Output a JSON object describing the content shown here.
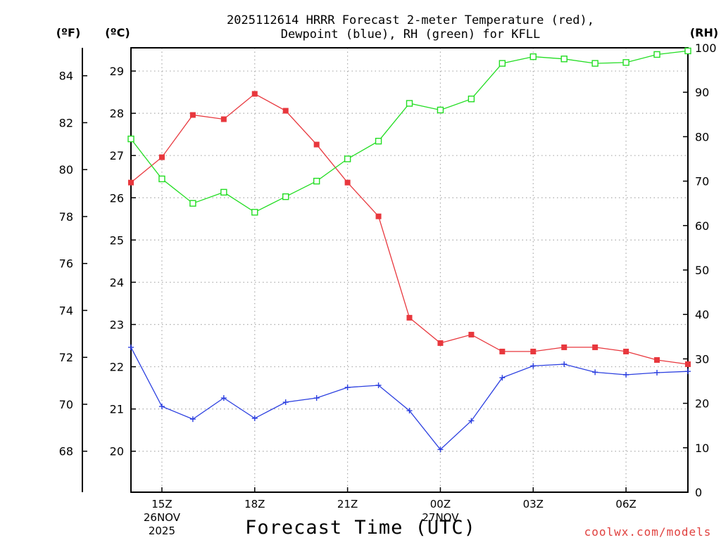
{
  "chart_data": {
    "type": "line",
    "title_line1": "2025112614 HRRR Forecast 2-meter Temperature (red),",
    "title_line2": "Dewpoint (blue), RH (green) for KFLL",
    "left_outer_unit": "(ºF)",
    "left_inner_unit": "(ºC)",
    "right_unit": "(RH)",
    "xlabel": "Forecast Time (UTC)",
    "credit": "coolwx.com/models",
    "hours": [
      14,
      15,
      16,
      17,
      18,
      19,
      20,
      21,
      22,
      23,
      24,
      25,
      26,
      27,
      28,
      29,
      30,
      31,
      32
    ],
    "xlim": [
      14,
      32
    ],
    "x_ticks": [
      {
        "hour": 15,
        "label": "15Z",
        "sub1": "26NOV",
        "sub2": "2025"
      },
      {
        "hour": 18,
        "label": "18Z",
        "sub1": "",
        "sub2": ""
      },
      {
        "hour": 21,
        "label": "21Z",
        "sub1": "",
        "sub2": ""
      },
      {
        "hour": 24,
        "label": "00Z",
        "sub1": "27NOV",
        "sub2": ""
      },
      {
        "hour": 27,
        "label": "03Z",
        "sub1": "",
        "sub2": ""
      },
      {
        "hour": 30,
        "label": "06Z",
        "sub1": "",
        "sub2": ""
      }
    ],
    "celsius_axis": {
      "ylim": [
        19.03,
        29.55
      ],
      "ticks": [
        20,
        21,
        22,
        23,
        24,
        25,
        26,
        27,
        28,
        29
      ]
    },
    "fahrenheit_axis": {
      "ticks": [
        68,
        70,
        72,
        74,
        76,
        78,
        80,
        82,
        84
      ]
    },
    "rh_axis": {
      "ylim": [
        0,
        100
      ],
      "ticks": [
        0,
        10,
        20,
        30,
        40,
        50,
        60,
        70,
        80,
        90,
        100
      ]
    },
    "series": [
      {
        "name": "Temperature",
        "color": "#e8373d",
        "marker": "filled-square",
        "units": "C",
        "values": [
          26.36,
          26.96,
          27.96,
          27.86,
          28.46,
          28.06,
          27.26,
          26.36,
          25.56,
          23.16,
          22.56,
          22.76,
          22.36,
          22.36,
          22.46,
          22.46,
          22.36,
          22.16,
          22.06
        ]
      },
      {
        "name": "Dewpoint",
        "color": "#2b3fe0",
        "marker": "plus",
        "units": "C",
        "values": [
          22.46,
          21.06,
          20.76,
          21.26,
          20.78,
          21.16,
          21.26,
          21.51,
          21.56,
          20.96,
          20.04,
          20.72,
          21.74,
          22.02,
          22.06,
          21.87,
          21.81,
          21.86,
          21.89
        ]
      },
      {
        "name": "RH",
        "color": "#22dd22",
        "marker": "open-square",
        "units": "%",
        "values": [
          79.5,
          70.5,
          65.0,
          67.5,
          63.0,
          66.5,
          70.0,
          75.0,
          79.0,
          87.5,
          86.0,
          88.5,
          96.5,
          98.0,
          97.5,
          96.5,
          96.7,
          98.5,
          99.3
        ]
      }
    ]
  }
}
